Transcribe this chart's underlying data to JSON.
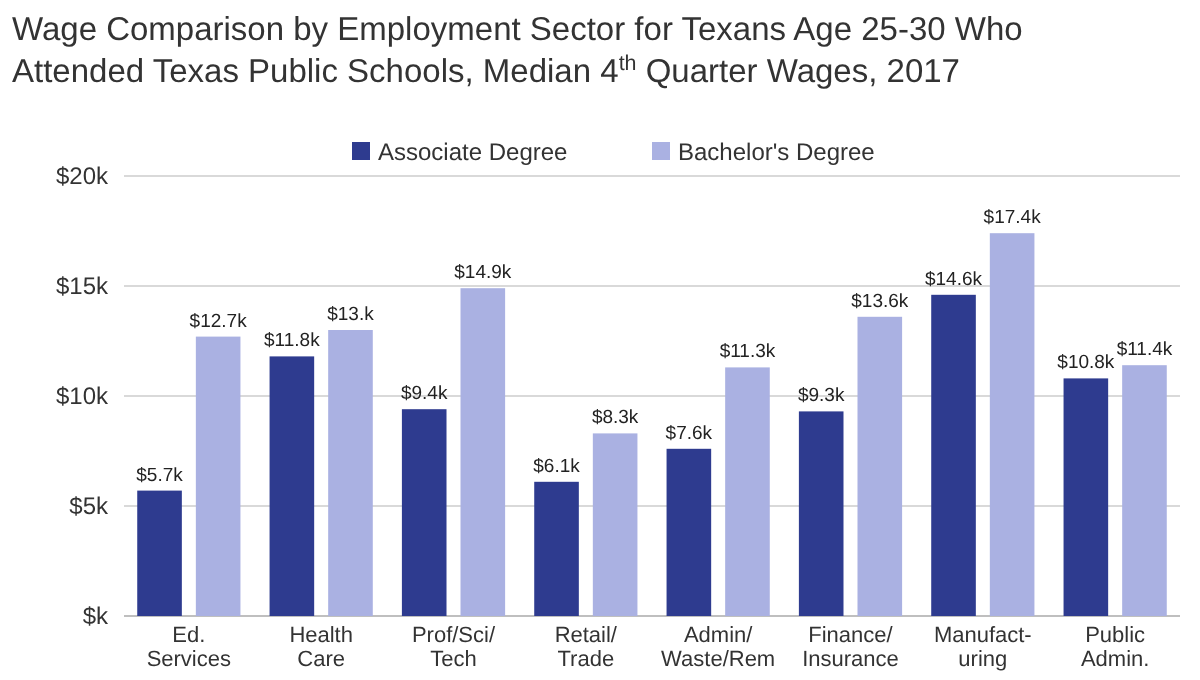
{
  "chart_data": {
    "type": "bar",
    "title": "Wage Comparison by Employment Sector for Texans Age 25-30 Who Attended Texas Public Schools, Median 4$^{th}$ Quarter Wages, 2017",
    "categories": [
      "Ed.\nServices",
      "Health\nCare",
      "Prof/Sci/\nTech",
      "Retail/\nTrade",
      "Admin/\nWaste/Rem",
      "Finance/\nInsurance",
      "Manufact-\nuring",
      "Public\nAdmin."
    ],
    "series": [
      {
        "name": "Associate Degree",
        "color": "#2e3b8f",
        "values": [
          5.7,
          11.8,
          9.4,
          6.1,
          7.6,
          9.3,
          14.6,
          10.8
        ],
        "value_labels": [
          "$5.7k",
          "$11.8k",
          "$9.4k",
          "$6.1k",
          "$7.6k",
          "$9.3k",
          "$14.6k",
          "$10.8k"
        ]
      },
      {
        "name": "Bachelor's Degree",
        "color": "#aab1e2",
        "values": [
          12.7,
          13,
          14.9,
          8.3,
          11.3,
          13.6,
          17.4,
          11.4
        ],
        "value_labels": [
          "$12.7k",
          "$13.k",
          "$14.9k",
          "$8.3k",
          "$11.3k",
          "$13.6k",
          "$17.4k",
          "$11.4k"
        ]
      }
    ],
    "ylim": [
      0,
      20
    ],
    "yticks": [
      {
        "value": 0,
        "label": "$k"
      },
      {
        "value": 5,
        "label": "$5k"
      },
      {
        "value": 10,
        "label": "$10k"
      },
      {
        "value": 15,
        "label": "$15k"
      },
      {
        "value": 20,
        "label": "$20k"
      }
    ],
    "grid": "y",
    "legend": "top"
  }
}
